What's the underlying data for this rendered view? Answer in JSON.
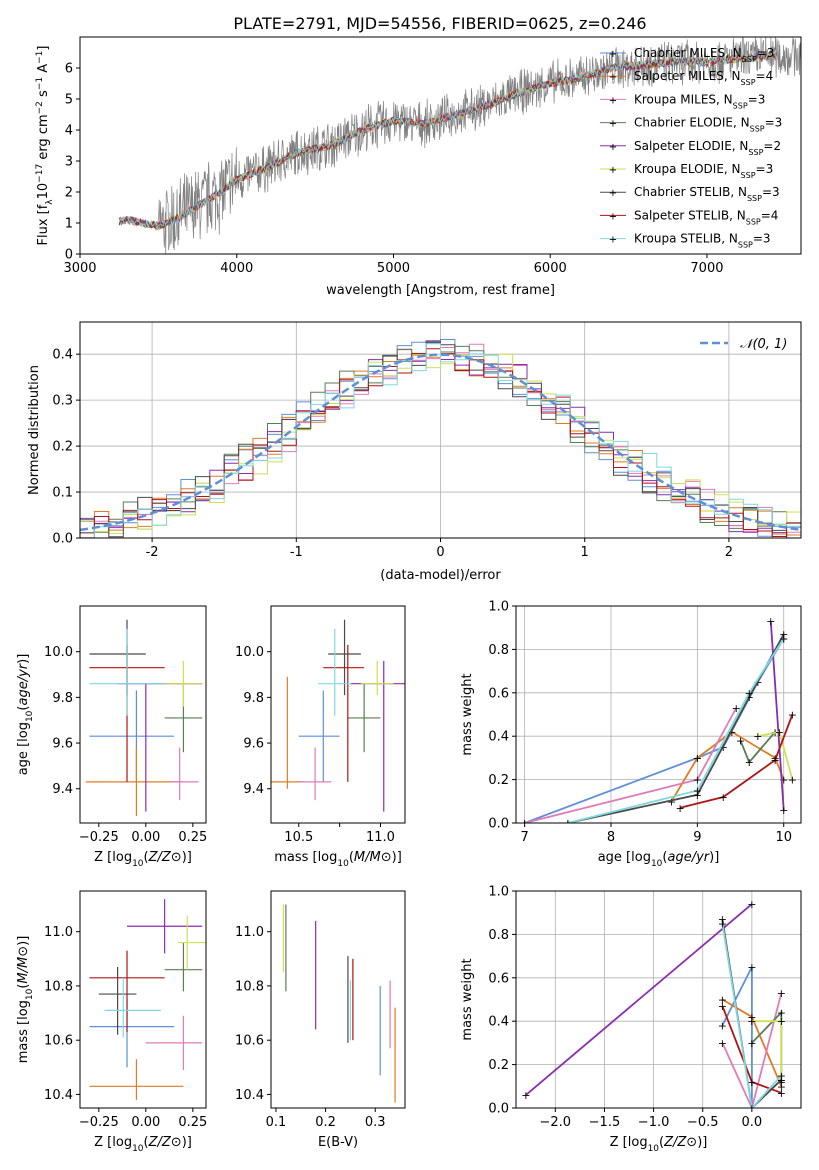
{
  "title": "PLATE=2791, MJD=54556, FIBERID=0625, z=0.246",
  "models": [
    {
      "label": "Chabrier MILES, N",
      "sub": "SSP",
      "tail": "=3",
      "color": "#5e8fd8"
    },
    {
      "label": "Salpeter MILES, N",
      "sub": "SSP",
      "tail": "=4",
      "color": "#e07b22"
    },
    {
      "label": "Kroupa MILES, N",
      "sub": "SSP",
      "tail": "=3",
      "color": "#e27ab8"
    },
    {
      "label": "Chabrier ELODIE, N",
      "sub": "SSP",
      "tail": "=3",
      "color": "#5a7d55"
    },
    {
      "label": "Salpeter ELODIE, N",
      "sub": "SSP",
      "tail": "=2",
      "color": "#8a2cb0"
    },
    {
      "label": "Kroupa ELODIE, N",
      "sub": "SSP",
      "tail": "=3",
      "color": "#cfe050"
    },
    {
      "label": "Chabrier STELIB, N",
      "sub": "SSP",
      "tail": "=3",
      "color": "#4a4a4a"
    },
    {
      "label": "Salpeter STELIB, N",
      "sub": "SSP",
      "tail": "=4",
      "color": "#b01515"
    },
    {
      "label": "Kroupa STELIB, N",
      "sub": "SSP",
      "tail": "=3",
      "color": "#7fd8e0"
    }
  ],
  "chart_data": [
    {
      "type": "line",
      "xlabel": "wavelength [Angstrom, rest frame]",
      "ylabel_main": "Flux [f",
      "ylabel_sub": "λ",
      "ylabel_rest": "10",
      "ylabel_exp": "−17",
      "ylabel_tail": " erg cm",
      "ylabel_exp2": "−2",
      "ylabel_tail2": " s",
      "ylabel_exp3": "−1",
      "ylabel_tail3": " A",
      "ylabel_exp4": "−1",
      "ylabel_end": "]",
      "xlim": [
        3000,
        7600
      ],
      "ylim": [
        0,
        7
      ],
      "xticks": [
        3000,
        4000,
        5000,
        6000,
        7000
      ],
      "yticks": [
        0,
        1,
        2,
        3,
        4,
        5,
        6
      ],
      "data_color": "#808080",
      "model_x": [
        3200,
        3300,
        3400,
        3500,
        3600,
        3700,
        3800,
        3900,
        4000,
        4200,
        4400,
        4600,
        4800,
        5000,
        5200,
        5400,
        5600,
        5800,
        6000,
        6200,
        6400,
        6600,
        6800,
        7000,
        7200,
        7400
      ],
      "model_y": [
        1.0,
        1.1,
        1.0,
        0.9,
        1.1,
        1.4,
        1.7,
        2.0,
        2.4,
        2.8,
        3.3,
        3.5,
        4.0,
        4.3,
        4.2,
        4.5,
        4.8,
        5.2,
        5.5,
        5.7,
        6.0,
        6.1,
        6.2,
        6.2,
        6.3,
        6.4
      ],
      "noise_start": 3500,
      "gap": [
        3200,
        3250
      ]
    },
    {
      "type": "histogram",
      "xlabel": "(data-model)/error",
      "ylabel": "Normed distribution",
      "xlim": [
        -2.5,
        2.5
      ],
      "ylim": [
        0,
        0.47
      ],
      "xticks": [
        -2,
        -1,
        0,
        1,
        2
      ],
      "yticks": [
        0.0,
        0.1,
        0.2,
        0.3,
        0.4
      ],
      "legend": "𝒩(0, 1)",
      "gauss_color": "#5e8fd8"
    },
    {
      "type": "errorbar",
      "xlabel": "Z [log10(Z/Z⊙)]",
      "ylabel": "age  [log10(age/yr)]",
      "xlim": [
        -0.35,
        0.32
      ],
      "ylim": [
        9.25,
        10.2
      ],
      "xticks": [
        -0.25,
        0.0,
        0.25
      ],
      "xticklabels": [
        "−0.25",
        "0.00",
        "0.25"
      ],
      "yticks": [
        9.4,
        9.6,
        9.8,
        10.0
      ],
      "yticklabels": [
        "9.4",
        "9.6",
        "9.8",
        "10.0"
      ],
      "points": [
        {
          "c": 0,
          "x": -0.05,
          "xe": [
            0.25,
            0.2
          ],
          "y": 9.63,
          "ye": [
            0.2,
            0.2
          ]
        },
        {
          "c": 1,
          "x": -0.05,
          "xe": [
            0.27,
            0.25
          ],
          "y": 9.43,
          "ye": [
            0.15,
            0.15
          ]
        },
        {
          "c": 2,
          "x": 0.18,
          "xe": [
            0.05,
            0.1
          ],
          "y": 9.43,
          "ye": [
            0.08,
            0.15
          ]
        },
        {
          "c": 3,
          "x": 0.2,
          "xe": [
            0.1,
            0.1
          ],
          "y": 9.71,
          "ye": [
            0.15,
            0.15
          ]
        },
        {
          "c": 4,
          "x": 0.0,
          "xe": [
            0.15,
            0.3
          ],
          "y": 9.86,
          "ye": [
            0.56,
            0.0
          ]
        },
        {
          "c": 5,
          "x": 0.2,
          "xe": [
            0.1,
            0.1
          ],
          "y": 9.86,
          "ye": [
            0.1,
            0.1
          ]
        },
        {
          "c": 6,
          "x": -0.1,
          "xe": [
            0.2,
            0.1
          ],
          "y": 9.99,
          "ye": [
            0.18,
            0.15
          ]
        },
        {
          "c": 7,
          "x": -0.1,
          "xe": [
            0.2,
            0.2
          ],
          "y": 9.93,
          "ye": [
            0.5,
            0.1
          ]
        },
        {
          "c": 8,
          "x": -0.1,
          "xe": [
            0.2,
            0.2
          ],
          "y": 9.86,
          "ye": [
            0.14,
            0.24
          ]
        }
      ]
    },
    {
      "type": "errorbar",
      "xlabel": "mass [log10(M/M⊙)]",
      "xlim": [
        10.33,
        11.15
      ],
      "ylim": [
        9.25,
        10.2
      ],
      "xticks": [
        10.5,
        10.75,
        11.0
      ],
      "xticklabels": [
        "10.5",
        "",
        "11.0"
      ],
      "yticks": [
        9.4,
        9.6,
        9.8,
        10.0
      ],
      "yticklabels": [
        "9.4",
        "9.6",
        "9.8",
        "10.0"
      ],
      "points": [
        {
          "c": 0,
          "x": 10.65,
          "xe": [
            0.15,
            0.1
          ],
          "y": 9.63,
          "ye": [
            0.2,
            0.2
          ]
        },
        {
          "c": 1,
          "x": 10.43,
          "xe": [
            0.1,
            0.1
          ],
          "y": 9.43,
          "ye": [
            0.03,
            0.46
          ]
        },
        {
          "c": 2,
          "x": 10.6,
          "xe": [
            0.1,
            0.1
          ],
          "y": 9.43,
          "ye": [
            0.08,
            0.15
          ]
        },
        {
          "c": 3,
          "x": 10.9,
          "xe": [
            0.1,
            0.1
          ],
          "y": 9.71,
          "ye": [
            0.15,
            0.15
          ]
        },
        {
          "c": 4,
          "x": 11.02,
          "xe": [
            0.2,
            0.15
          ],
          "y": 9.86,
          "ye": [
            0.56,
            0.1
          ]
        },
        {
          "c": 5,
          "x": 10.98,
          "xe": [
            0.1,
            0.1
          ],
          "y": 9.86,
          "ye": [
            0.05,
            0.1
          ]
        },
        {
          "c": 6,
          "x": 10.78,
          "xe": [
            0.1,
            0.1
          ],
          "y": 9.99,
          "ye": [
            0.18,
            0.15
          ]
        },
        {
          "c": 7,
          "x": 10.8,
          "xe": [
            0.15,
            0.1
          ],
          "y": 9.93,
          "ye": [
            0.5,
            0.1
          ]
        },
        {
          "c": 8,
          "x": 10.72,
          "xe": [
            0.1,
            0.1
          ],
          "y": 9.86,
          "ye": [
            0.14,
            0.24
          ]
        }
      ]
    },
    {
      "type": "line",
      "xlabel": "age  [log10(age/yr)]",
      "ylabel": "mass weight",
      "xlim": [
        6.9,
        10.2
      ],
      "ylim": [
        0,
        1
      ],
      "xticks": [
        7,
        8,
        9,
        10
      ],
      "yticks": [
        0.0,
        0.2,
        0.4,
        0.6,
        0.8,
        1.0
      ],
      "series": [
        {
          "c": 0,
          "x": [
            7.0,
            9.0,
            9.3,
            9.7,
            10.0
          ],
          "y": [
            0.0,
            0.3,
            0.35,
            0.65,
            0.85
          ]
        },
        {
          "c": 1,
          "x": [
            8.7,
            9.0,
            9.4,
            9.9,
            10.0
          ],
          "y": [
            0.1,
            0.3,
            0.42,
            0.3,
            0.2
          ]
        },
        {
          "c": 2,
          "x": [
            7.0,
            9.0,
            9.45
          ],
          "y": [
            0.0,
            0.2,
            0.53
          ]
        },
        {
          "c": 3,
          "x": [
            9.5,
            9.6,
            9.9
          ],
          "y": [
            0.38,
            0.28,
            0.42
          ]
        },
        {
          "c": 4,
          "x": [
            9.85,
            10.0
          ],
          "y": [
            0.93,
            0.06
          ]
        },
        {
          "c": 5,
          "x": [
            9.7,
            9.95,
            10.1
          ],
          "y": [
            0.4,
            0.42,
            0.2
          ]
        },
        {
          "c": 6,
          "x": [
            7.5,
            9.0,
            9.6,
            10.0
          ],
          "y": [
            0.0,
            0.13,
            0.58,
            0.87
          ]
        },
        {
          "c": 7,
          "x": [
            8.8,
            9.3,
            9.9,
            10.1
          ],
          "y": [
            0.07,
            0.12,
            0.29,
            0.5
          ]
        },
        {
          "c": 8,
          "x": [
            7.5,
            9.0,
            9.6,
            10.0
          ],
          "y": [
            0.0,
            0.15,
            0.6,
            0.85
          ]
        }
      ]
    },
    {
      "type": "errorbar",
      "xlabel": "Z [log10(Z/Z⊙)]",
      "ylabel": "mass [log10(M/M⊙)]",
      "xlim": [
        -0.35,
        0.32
      ],
      "ylim": [
        10.35,
        11.15
      ],
      "xticks": [
        -0.25,
        0.0,
        0.25
      ],
      "xticklabels": [
        "−0.25",
        "0.00",
        "0.25"
      ],
      "yticks": [
        10.4,
        10.6,
        10.8,
        11.0
      ],
      "yticklabels": [
        "10.4",
        "10.6",
        "10.8",
        "11.0"
      ],
      "points": [
        {
          "c": 0,
          "x": -0.1,
          "xe": [
            0.2,
            0.25
          ],
          "y": 10.65,
          "ye": [
            0.15,
            0.1
          ]
        },
        {
          "c": 1,
          "x": -0.05,
          "xe": [
            0.25,
            0.25
          ],
          "y": 10.43,
          "ye": [
            0.05,
            0.1
          ]
        },
        {
          "c": 2,
          "x": 0.2,
          "xe": [
            0.2,
            0.1
          ],
          "y": 10.59,
          "ye": [
            0.1,
            0.1
          ]
        },
        {
          "c": 3,
          "x": 0.2,
          "xe": [
            0.1,
            0.1
          ],
          "y": 10.86,
          "ye": [
            0.08,
            0.1
          ]
        },
        {
          "c": 4,
          "x": 0.1,
          "xe": [
            0.2,
            0.2
          ],
          "y": 11.02,
          "ye": [
            0.1,
            0.1
          ]
        },
        {
          "c": 5,
          "x": 0.22,
          "xe": [
            0.05,
            0.1
          ],
          "y": 10.96,
          "ye": [
            0.1,
            0.1
          ]
        },
        {
          "c": 6,
          "x": -0.15,
          "xe": [
            0.1,
            0.1
          ],
          "y": 10.77,
          "ye": [
            0.15,
            0.1
          ]
        },
        {
          "c": 7,
          "x": -0.1,
          "xe": [
            0.2,
            0.2
          ],
          "y": 10.83,
          "ye": [
            0.2,
            0.1
          ]
        },
        {
          "c": 8,
          "x": -0.12,
          "xe": [
            0.1,
            0.2
          ],
          "y": 10.71,
          "ye": [
            0.1,
            0.12
          ]
        }
      ]
    },
    {
      "type": "errorbar",
      "xlabel": "E(B-V)",
      "xlim": [
        0.09,
        0.36
      ],
      "ylim": [
        10.35,
        11.15
      ],
      "xticks": [
        0.1,
        0.2,
        0.3
      ],
      "xticklabels": [
        "0.1",
        "0.2",
        "0.3"
      ],
      "yticks": [
        10.4,
        10.6,
        10.8,
        11.0
      ],
      "yticklabels": [
        "10.4",
        "10.6",
        "10.8",
        "11.0"
      ],
      "points": [
        {
          "c": 0,
          "x": 0.31,
          "xe": [
            0,
            0
          ],
          "y": 10.65,
          "ye": [
            0.18,
            0.15
          ]
        },
        {
          "c": 1,
          "x": 0.34,
          "xe": [
            0,
            0
          ],
          "y": 10.55,
          "ye": [
            0.18,
            0.17
          ]
        },
        {
          "c": 2,
          "x": 0.33,
          "xe": [
            0,
            0
          ],
          "y": 10.65,
          "ye": [
            0.08,
            0.17
          ]
        },
        {
          "c": 3,
          "x": 0.12,
          "xe": [
            0,
            0
          ],
          "y": 10.94,
          "ye": [
            0.16,
            0.16
          ]
        },
        {
          "c": 4,
          "x": 0.18,
          "xe": [
            0,
            0
          ],
          "y": 10.84,
          "ye": [
            0.2,
            0.2
          ]
        },
        {
          "c": 5,
          "x": 0.115,
          "xe": [
            0,
            0
          ],
          "y": 10.95,
          "ye": [
            0.1,
            0.15
          ]
        },
        {
          "c": 6,
          "x": 0.245,
          "xe": [
            0,
            0
          ],
          "y": 10.75,
          "ye": [
            0.16,
            0.16
          ]
        },
        {
          "c": 7,
          "x": 0.255,
          "xe": [
            0,
            0
          ],
          "y": 10.75,
          "ye": [
            0.15,
            0.15
          ]
        },
        {
          "c": 8,
          "x": 0.25,
          "xe": [
            0,
            0
          ],
          "y": 10.7,
          "ye": [
            0.1,
            0.12
          ]
        }
      ]
    },
    {
      "type": "line",
      "xlabel": "Z [log10(Z/Z⊙)]",
      "ylabel": "mass weight",
      "xlim": [
        -2.4,
        0.5
      ],
      "ylim": [
        0,
        1
      ],
      "xticks": [
        -2.0,
        -1.5,
        -1.0,
        -0.5,
        0.0
      ],
      "xticklabels": [
        "−2.0",
        "−1.5",
        "−1.0",
        "−0.5",
        "0.0"
      ],
      "yticks": [
        0.0,
        0.2,
        0.4,
        0.6,
        0.8,
        1.0
      ],
      "series": [
        {
          "c": 0,
          "x": [
            -0.3,
            0.0,
            0.0
          ],
          "y": [
            0.38,
            0.65,
            0.0
          ]
        },
        {
          "c": 1,
          "x": [
            -0.3,
            0.0,
            0.3
          ],
          "y": [
            0.5,
            0.42,
            0.1
          ]
        },
        {
          "c": 2,
          "x": [
            -0.3,
            0.0,
            0.3
          ],
          "y": [
            0.3,
            0.0,
            0.53
          ]
        },
        {
          "c": 3,
          "x": [
            0.0,
            0.3,
            0.3
          ],
          "y": [
            0.3,
            0.44,
            0.12
          ]
        },
        {
          "c": 4,
          "x": [
            -2.3,
            0.0
          ],
          "y": [
            0.06,
            0.94
          ]
        },
        {
          "c": 5,
          "x": [
            0.0,
            0.3,
            0.3
          ],
          "y": [
            0.4,
            0.4,
            0.13
          ]
        },
        {
          "c": 6,
          "x": [
            -0.3,
            0.0,
            0.3
          ],
          "y": [
            0.87,
            0.0,
            0.13
          ]
        },
        {
          "c": 7,
          "x": [
            -0.3,
            0.0,
            0.3
          ],
          "y": [
            0.47,
            0.12,
            0.07
          ]
        },
        {
          "c": 8,
          "x": [
            -0.3,
            0.0,
            0.3
          ],
          "y": [
            0.85,
            0.0,
            0.15
          ]
        }
      ]
    }
  ]
}
